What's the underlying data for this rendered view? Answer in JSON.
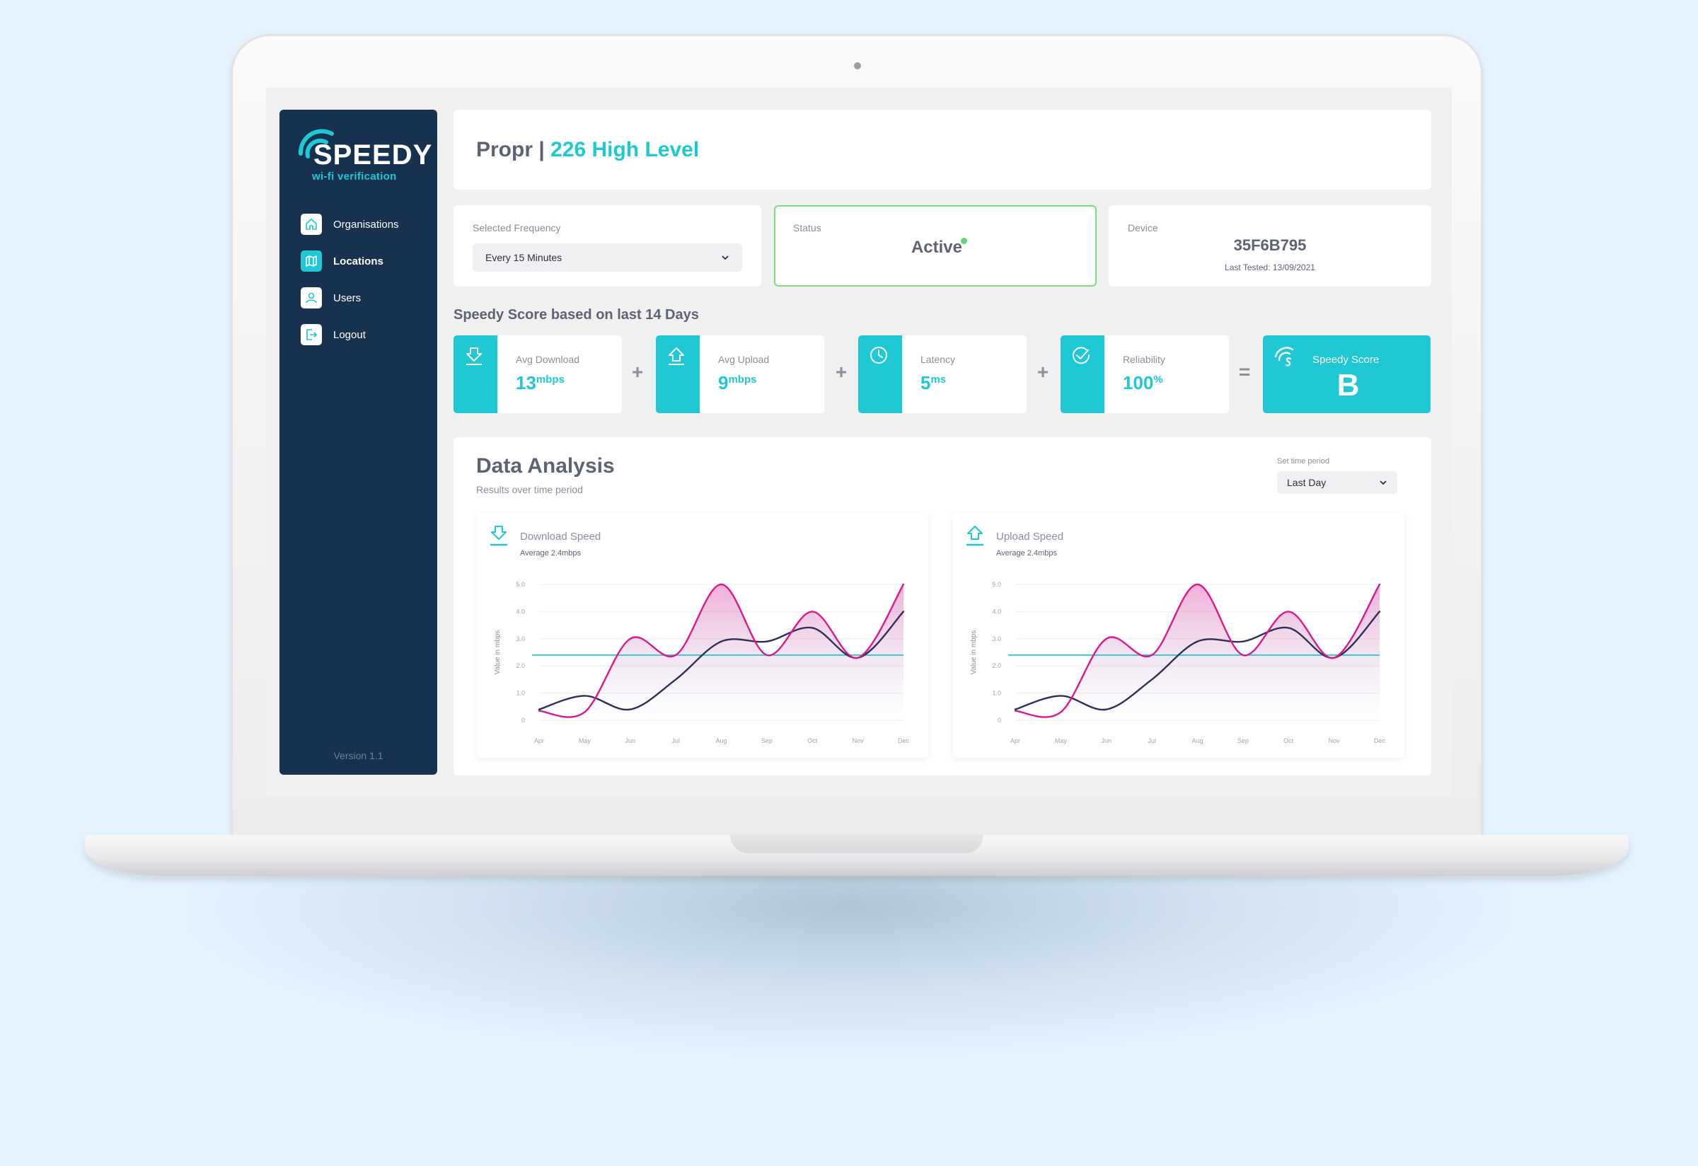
{
  "brand": {
    "logo_word": "SPEEDY",
    "logo_sub": "wi-fi verification",
    "accent_color": "#1ec8d4",
    "sidebar_color": "#17324e",
    "pink_color": "#d9198f",
    "navy_color": "#2c2f57"
  },
  "sidebar": {
    "items": [
      {
        "label": "Organisations",
        "icon": "home-icon",
        "active": false
      },
      {
        "label": "Locations",
        "icon": "map-icon",
        "active": true
      },
      {
        "label": "Users",
        "icon": "user-icon",
        "active": false
      },
      {
        "label": "Logout",
        "icon": "logout-icon",
        "active": false
      }
    ],
    "version": "Version 1.1"
  },
  "header": {
    "org": "Propr |",
    "location": "226 High Level"
  },
  "frequency": {
    "label": "Selected Frequency",
    "value": "Every 15 Minutes"
  },
  "status": {
    "label": "Status",
    "value": "Active",
    "indicator_color": "#63d86d"
  },
  "device": {
    "label": "Device",
    "id": "35F6B795",
    "last_tested": "Last Tested: 13/09/2021"
  },
  "score_section": {
    "heading": "Speedy Score based on last 14 Days",
    "metrics": [
      {
        "label": "Avg Download",
        "value": "13",
        "unit": "mbps",
        "icon": "download-icon"
      },
      {
        "label": "Avg Upload",
        "value": "9",
        "unit": "mbps",
        "icon": "upload-icon"
      },
      {
        "label": "Latency",
        "value": "5",
        "unit": "ms",
        "icon": "clock-icon"
      },
      {
        "label": "Reliability",
        "value": "100",
        "unit": "%",
        "icon": "check-circle-icon"
      }
    ],
    "operators": [
      "+",
      "+",
      "+",
      "="
    ],
    "score": {
      "label": "Speedy Score",
      "value": "B",
      "icon": "wifi-s-icon"
    }
  },
  "analysis": {
    "title": "Data Analysis",
    "subtitle": "Results over time period",
    "period_label": "Set time period",
    "period_value": "Last Day",
    "charts": [
      {
        "title": "Download Speed",
        "average": "Average 2.4mbps",
        "icon": "download-icon"
      },
      {
        "title": "Upload Speed",
        "average": "Average 2.4mbps",
        "icon": "upload-icon"
      }
    ]
  },
  "chart_data": [
    {
      "type": "line",
      "title": "Download Speed",
      "ylabel": "Value in mbps",
      "x": [
        "Apr",
        "May",
        "Jun",
        "Jul",
        "Aug",
        "Sep",
        "Oct",
        "Nov",
        "Dec"
      ],
      "y_ticks": [
        "0",
        "1.0",
        "2.0",
        "3.0",
        "4.0",
        "5.0"
      ],
      "ylim": [
        0,
        5
      ],
      "series": [
        {
          "values": [
            0.35,
            0.3,
            3.0,
            2.4,
            5.0,
            2.4,
            4.0,
            2.3,
            5.0
          ],
          "color": "#d9198f",
          "fill": true
        },
        {
          "values": [
            0.4,
            0.9,
            0.4,
            1.5,
            2.9,
            2.9,
            3.4,
            2.3,
            4.0
          ],
          "color": "#2c2f57",
          "fill": false
        }
      ],
      "average_line": {
        "value": 2.4,
        "color": "#1ec8d4"
      }
    },
    {
      "type": "line",
      "title": "Upload Speed",
      "ylabel": "Value in mbps",
      "x": [
        "Apr",
        "May",
        "Jun",
        "Jul",
        "Aug",
        "Sep",
        "Oct",
        "Nov",
        "Dec"
      ],
      "y_ticks": [
        "0",
        "1.0",
        "2.0",
        "3.0",
        "4.0",
        "5.0"
      ],
      "ylim": [
        0,
        5
      ],
      "series": [
        {
          "values": [
            0.35,
            0.3,
            3.0,
            2.4,
            5.0,
            2.4,
            4.0,
            2.3,
            5.0
          ],
          "color": "#d9198f",
          "fill": true
        },
        {
          "values": [
            0.4,
            0.9,
            0.4,
            1.5,
            2.9,
            2.9,
            3.4,
            2.3,
            4.0
          ],
          "color": "#2c2f57",
          "fill": false
        }
      ],
      "average_line": {
        "value": 2.4,
        "color": "#1ec8d4"
      }
    }
  ]
}
